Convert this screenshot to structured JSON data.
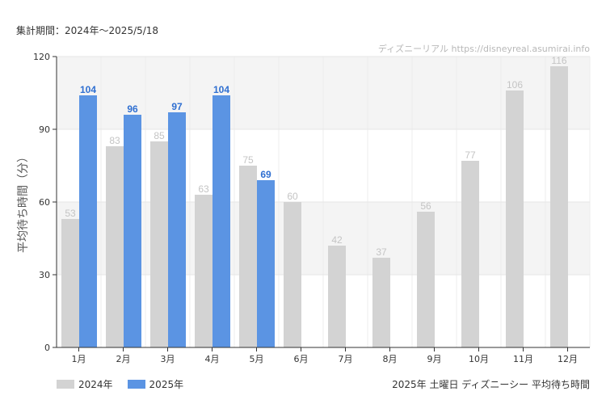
{
  "header": {
    "period": "集計期間：2024年～2025/5/18",
    "credit": "ディズニーリアル https://disneyreal.asumirai.info"
  },
  "footer": {
    "caption": "2025年 土曜日 ディズニーシー 平均待ち時間"
  },
  "colors": {
    "series_2024": "#d3d3d3",
    "series_2025": "#5b94e3",
    "label_2024": "#c4c4c4",
    "label_2025": "#2f6fd1"
  },
  "chart_data": {
    "type": "bar",
    "title": "2025年 土曜日 ディズニーシー 平均待ち時間",
    "xlabel": "",
    "ylabel": "平均待ち時間（分）",
    "ylim": [
      0,
      120
    ],
    "yticks": [
      0,
      30,
      60,
      90,
      120
    ],
    "grid": true,
    "legend_position": "bottom-left",
    "categories": [
      "1月",
      "2月",
      "3月",
      "4月",
      "5月",
      "6月",
      "7月",
      "8月",
      "9月",
      "10月",
      "11月",
      "12月"
    ],
    "series": [
      {
        "name": "2024年",
        "values": [
          53,
          83,
          85,
          63,
          75,
          60,
          42,
          37,
          56,
          77,
          106,
          116
        ]
      },
      {
        "name": "2025年",
        "values": [
          104,
          96,
          97,
          104,
          69,
          null,
          null,
          null,
          null,
          null,
          null,
          null
        ]
      }
    ]
  }
}
